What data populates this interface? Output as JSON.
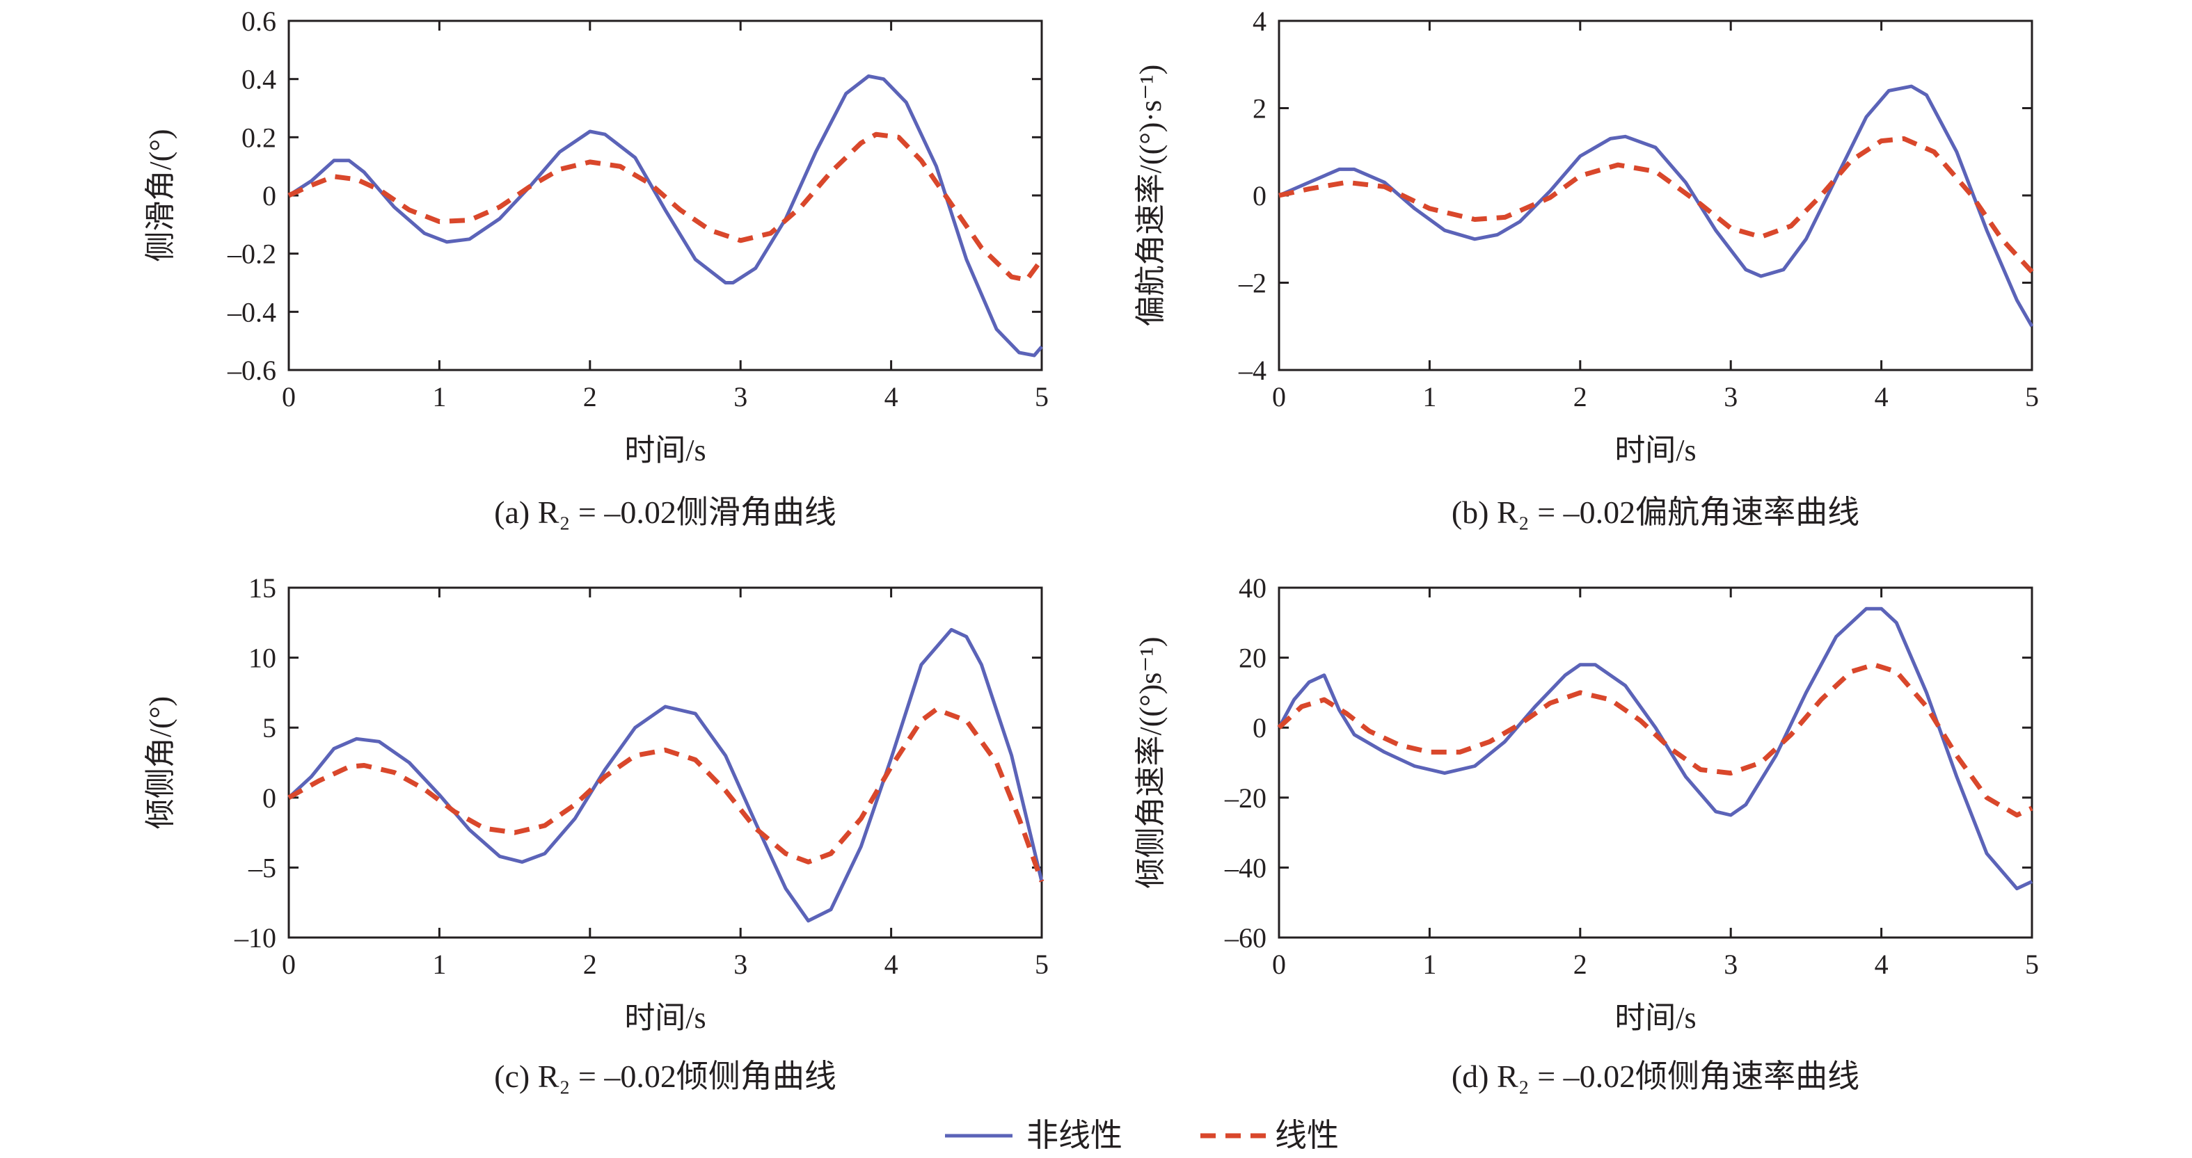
{
  "legend": {
    "nonlinear_label": "非线性",
    "linear_label": "线性"
  },
  "colors": {
    "nonlinear": "#5b63b8",
    "linear": "#d9472b",
    "axis": "#231f20"
  },
  "chart_data": [
    {
      "type": "line",
      "caption": "(a) R₂ = –0.02侧滑角曲线",
      "caption_parts": {
        "prefix": "(a) ",
        "var": "R",
        "sub": "2",
        "rest": " = –0.02侧滑角曲线"
      },
      "xlabel": "时间/s",
      "ylabel": "侧滑角/(°)",
      "xlim": [
        0,
        5
      ],
      "ylim": [
        -0.6,
        0.6
      ],
      "xticks": [
        0,
        1,
        2,
        3,
        4,
        5
      ],
      "xtick_labels": [
        "0",
        "1",
        "2",
        "3",
        "4",
        "5"
      ],
      "yticks": [
        -0.6,
        -0.4,
        -0.2,
        0,
        0.2,
        0.4,
        0.6
      ],
      "ytick_labels": [
        "–0.6",
        "–0.4",
        "–0.2",
        "0",
        "0.2",
        "0.4",
        "0.6"
      ],
      "series": [
        {
          "name": "非线性",
          "style": "solid",
          "x": [
            0,
            0.15,
            0.3,
            0.4,
            0.5,
            0.7,
            0.9,
            1.05,
            1.2,
            1.4,
            1.6,
            1.8,
            2.0,
            2.1,
            2.3,
            2.5,
            2.7,
            2.9,
            2.95,
            3.1,
            3.3,
            3.5,
            3.7,
            3.85,
            3.95,
            4.1,
            4.3,
            4.5,
            4.7,
            4.85,
            4.95,
            5.0
          ],
          "y": [
            0,
            0.05,
            0.12,
            0.12,
            0.08,
            -0.04,
            -0.13,
            -0.16,
            -0.15,
            -0.08,
            0.03,
            0.15,
            0.22,
            0.21,
            0.13,
            -0.05,
            -0.22,
            -0.3,
            -0.3,
            -0.25,
            -0.08,
            0.15,
            0.35,
            0.41,
            0.4,
            0.32,
            0.1,
            -0.22,
            -0.46,
            -0.54,
            -0.55,
            -0.52
          ]
        },
        {
          "name": "线性",
          "style": "dashed",
          "x": [
            0,
            0.15,
            0.3,
            0.45,
            0.6,
            0.8,
            1.0,
            1.2,
            1.4,
            1.6,
            1.8,
            2.0,
            2.2,
            2.4,
            2.6,
            2.8,
            3.0,
            3.2,
            3.4,
            3.6,
            3.8,
            3.9,
            4.05,
            4.2,
            4.4,
            4.6,
            4.8,
            4.9,
            5.0
          ],
          "y": [
            0,
            0.035,
            0.065,
            0.055,
            0.02,
            -0.05,
            -0.09,
            -0.085,
            -0.04,
            0.03,
            0.09,
            0.115,
            0.1,
            0.04,
            -0.05,
            -0.12,
            -0.155,
            -0.13,
            -0.04,
            0.08,
            0.18,
            0.21,
            0.2,
            0.12,
            -0.03,
            -0.18,
            -0.28,
            -0.29,
            -0.22
          ]
        }
      ]
    },
    {
      "type": "line",
      "caption": "(b) R₂ = –0.02偏航角速率曲线",
      "caption_parts": {
        "prefix": "(b) ",
        "var": "R",
        "sub": "2",
        "rest": " = –0.02偏航角速率曲线"
      },
      "xlabel": "时间/s",
      "ylabel": "偏航角速率/((°)·s⁻¹)",
      "xlim": [
        0,
        5
      ],
      "ylim": [
        -4,
        4
      ],
      "xticks": [
        0,
        1,
        2,
        3,
        4,
        5
      ],
      "xtick_labels": [
        "0",
        "1",
        "2",
        "3",
        "4",
        "5"
      ],
      "yticks": [
        -4,
        -2,
        0,
        2,
        4
      ],
      "ytick_labels": [
        "–4",
        "–2",
        "0",
        "2",
        "4"
      ],
      "series": [
        {
          "name": "非线性",
          "style": "solid",
          "x": [
            0,
            0.2,
            0.4,
            0.5,
            0.7,
            0.9,
            1.1,
            1.3,
            1.45,
            1.6,
            1.8,
            2.0,
            2.2,
            2.3,
            2.5,
            2.7,
            2.9,
            3.1,
            3.2,
            3.35,
            3.5,
            3.7,
            3.9,
            4.05,
            4.2,
            4.3,
            4.5,
            4.7,
            4.9,
            5.0
          ],
          "y": [
            0,
            0.3,
            0.6,
            0.6,
            0.3,
            -0.3,
            -0.8,
            -1.0,
            -0.9,
            -0.6,
            0.1,
            0.9,
            1.3,
            1.35,
            1.1,
            0.3,
            -0.8,
            -1.7,
            -1.85,
            -1.7,
            -1.0,
            0.4,
            1.8,
            2.4,
            2.5,
            2.3,
            1.0,
            -0.8,
            -2.4,
            -3.0
          ]
        },
        {
          "name": "线性",
          "style": "dashed",
          "x": [
            0,
            0.2,
            0.45,
            0.7,
            1.0,
            1.3,
            1.5,
            1.8,
            2.0,
            2.25,
            2.5,
            2.8,
            3.0,
            3.2,
            3.4,
            3.6,
            3.8,
            4.0,
            4.15,
            4.35,
            4.6,
            4.8,
            5.0
          ],
          "y": [
            0,
            0.15,
            0.3,
            0.2,
            -0.3,
            -0.55,
            -0.5,
            -0.05,
            0.45,
            0.7,
            0.55,
            -0.2,
            -0.75,
            -0.95,
            -0.7,
            0.0,
            0.8,
            1.25,
            1.3,
            1.0,
            0.0,
            -1.0,
            -1.75
          ]
        }
      ]
    },
    {
      "type": "line",
      "caption": "(c) R₂ = –0.02倾侧角曲线",
      "caption_parts": {
        "prefix": "(c) ",
        "var": "R",
        "sub": "2",
        "rest": " = –0.02倾侧角曲线"
      },
      "xlabel": "时间/s",
      "ylabel": "倾侧角/(°)",
      "xlim": [
        0,
        5
      ],
      "ylim": [
        -10,
        15
      ],
      "xticks": [
        0,
        1,
        2,
        3,
        4,
        5
      ],
      "xtick_labels": [
        "0",
        "1",
        "2",
        "3",
        "4",
        "5"
      ],
      "yticks": [
        -10,
        -5,
        0,
        5,
        10,
        15
      ],
      "ytick_labels": [
        "–10",
        "–5",
        "0",
        "5",
        "10",
        "15"
      ],
      "series": [
        {
          "name": "非线性",
          "style": "solid",
          "x": [
            0,
            0.15,
            0.3,
            0.45,
            0.6,
            0.8,
            1.0,
            1.2,
            1.4,
            1.55,
            1.7,
            1.9,
            2.1,
            2.3,
            2.5,
            2.7,
            2.9,
            3.1,
            3.3,
            3.45,
            3.6,
            3.8,
            4.0,
            4.2,
            4.4,
            4.5,
            4.6,
            4.8,
            5.0
          ],
          "y": [
            0,
            1.5,
            3.5,
            4.2,
            4.0,
            2.5,
            0.2,
            -2.3,
            -4.2,
            -4.6,
            -4.0,
            -1.5,
            2.0,
            5.0,
            6.5,
            6.0,
            3.0,
            -1.8,
            -6.5,
            -8.8,
            -8.0,
            -3.5,
            2.8,
            9.5,
            12.0,
            11.5,
            9.5,
            3.0,
            -6.0
          ]
        },
        {
          "name": "线性",
          "style": "dashed",
          "x": [
            0,
            0.2,
            0.4,
            0.5,
            0.7,
            0.9,
            1.1,
            1.3,
            1.5,
            1.7,
            1.9,
            2.1,
            2.3,
            2.5,
            2.7,
            2.9,
            3.1,
            3.3,
            3.45,
            3.6,
            3.8,
            4.0,
            4.2,
            4.3,
            4.5,
            4.7,
            4.85,
            5.0
          ],
          "y": [
            0,
            1.2,
            2.2,
            2.3,
            1.8,
            0.6,
            -1.0,
            -2.2,
            -2.5,
            -2.0,
            -0.5,
            1.5,
            3.0,
            3.4,
            2.7,
            0.5,
            -2.2,
            -4.0,
            -4.6,
            -4.0,
            -1.5,
            2.2,
            5.5,
            6.3,
            5.5,
            2.5,
            -1.5,
            -6.0
          ]
        }
      ]
    },
    {
      "type": "line",
      "caption": "(d) R₂ = –0.02倾侧角速率曲线",
      "caption_parts": {
        "prefix": "(d) ",
        "var": "R",
        "sub": "2",
        "rest": " = –0.02倾侧角速率曲线"
      },
      "xlabel": "时间/s",
      "ylabel": "倾侧角速率/((°)s⁻¹)",
      "xlim": [
        0,
        5
      ],
      "ylim": [
        -60,
        40
      ],
      "xticks": [
        0,
        1,
        2,
        3,
        4,
        5
      ],
      "xtick_labels": [
        "0",
        "1",
        "2",
        "3",
        "4",
        "5"
      ],
      "yticks": [
        -60,
        -40,
        -20,
        0,
        20,
        40
      ],
      "ytick_labels": [
        "–60",
        "–40",
        "–20",
        "0",
        "20",
        "40"
      ],
      "series": [
        {
          "name": "非线性",
          "style": "solid",
          "x": [
            0,
            0.1,
            0.2,
            0.3,
            0.4,
            0.5,
            0.7,
            0.9,
            1.1,
            1.3,
            1.5,
            1.7,
            1.9,
            2.0,
            2.1,
            2.3,
            2.5,
            2.7,
            2.9,
            3.0,
            3.1,
            3.3,
            3.5,
            3.7,
            3.9,
            4.0,
            4.1,
            4.3,
            4.5,
            4.7,
            4.9,
            5.0
          ],
          "y": [
            0,
            8,
            13,
            15,
            5,
            -2,
            -7,
            -11,
            -13,
            -11,
            -4,
            6,
            15,
            18,
            18,
            12,
            0,
            -14,
            -24,
            -25,
            -22,
            -8,
            10,
            26,
            34,
            34,
            30,
            10,
            -14,
            -36,
            -46,
            -44
          ]
        },
        {
          "name": "线性",
          "style": "dashed",
          "x": [
            0,
            0.15,
            0.3,
            0.45,
            0.6,
            0.8,
            1.0,
            1.2,
            1.4,
            1.6,
            1.8,
            2.0,
            2.2,
            2.4,
            2.6,
            2.8,
            3.0,
            3.2,
            3.4,
            3.6,
            3.8,
            3.95,
            4.1,
            4.3,
            4.5,
            4.7,
            4.9,
            5.0
          ],
          "y": [
            0,
            6,
            8,
            4,
            -1,
            -5,
            -7,
            -7,
            -4,
            1,
            7,
            10,
            8,
            2,
            -6,
            -12,
            -13,
            -10,
            -2,
            8,
            16,
            18,
            16,
            6,
            -8,
            -20,
            -25,
            -23
          ]
        }
      ]
    }
  ]
}
